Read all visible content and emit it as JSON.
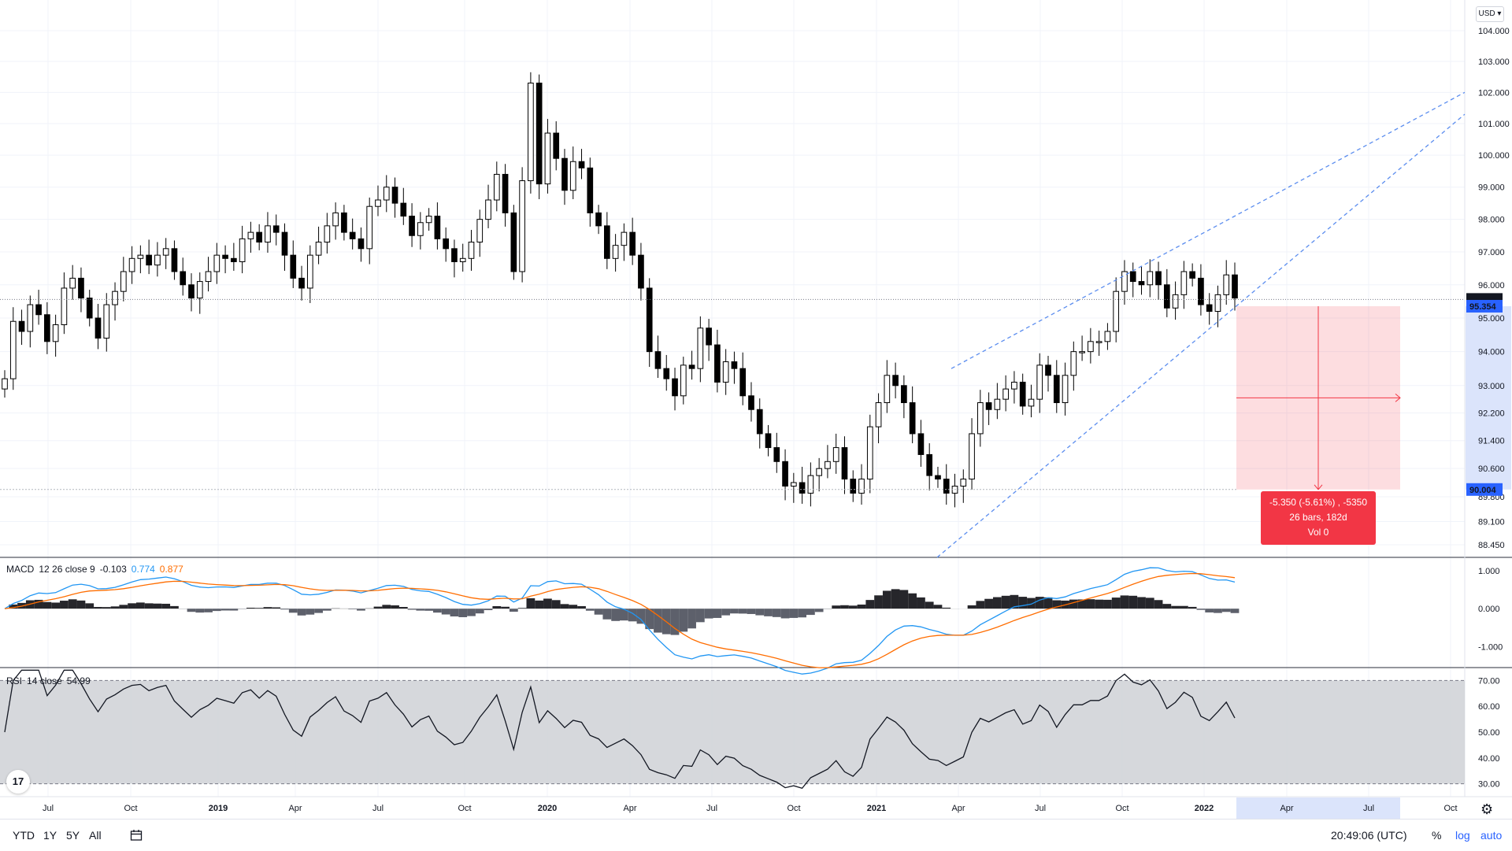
{
  "chart_data": [
    {
      "type": "candlestick",
      "title": "",
      "instrument_currency": "USD",
      "interval": "weekly",
      "x_tick_labels": [
        "Jul",
        "Oct",
        "2019",
        "Apr",
        "Jul",
        "Oct",
        "2020",
        "Apr",
        "Jul",
        "Oct",
        "2021",
        "Apr",
        "Jul",
        "Oct",
        "2022",
        "Apr",
        "Jul",
        "Oct"
      ],
      "y_tick_labels": [
        "104.000",
        "103.000",
        "102.000",
        "101.000",
        "100.000",
        "99.000",
        "98.000",
        "97.000",
        "96.000",
        "95.000",
        "94.000",
        "93.000",
        "92.200",
        "91.400",
        "90.600",
        "89.800",
        "89.100",
        "88.450"
      ],
      "y_log_scale": true,
      "ylim": [
        88.1,
        104.7
      ],
      "last_price_label": "95.558",
      "crosshair_price_label": "95.354",
      "measure_price_label": "90.004",
      "close_path": [
        93.2,
        94.9,
        94.6,
        95.4,
        95.1,
        94.3,
        94.8,
        95.9,
        96.2,
        95.6,
        95.0,
        94.4,
        95.4,
        95.8,
        96.4,
        96.8,
        96.9,
        96.6,
        96.9,
        97.1,
        96.4,
        96.0,
        95.6,
        96.1,
        96.4,
        96.9,
        96.8,
        96.7,
        97.4,
        97.6,
        97.3,
        97.8,
        97.6,
        96.9,
        96.2,
        95.9,
        96.9,
        97.3,
        97.8,
        98.2,
        97.6,
        97.4,
        97.1,
        98.4,
        98.6,
        99.0,
        98.5,
        98.1,
        97.5,
        97.9,
        98.1,
        97.4,
        97.1,
        96.7,
        96.8,
        97.3,
        98.0,
        98.6,
        99.4,
        98.2,
        96.4,
        99.2,
        102.3,
        99.1,
        100.7,
        99.9,
        98.9,
        99.8,
        99.6,
        98.2,
        97.8,
        96.8,
        97.2,
        97.6,
        96.9,
        95.9,
        94.0,
        93.5,
        93.2,
        92.7,
        93.6,
        93.5,
        94.7,
        94.2,
        93.1,
        93.7,
        93.5,
        92.7,
        92.3,
        91.6,
        91.2,
        90.8,
        90.1,
        90.2,
        89.9,
        90.4,
        90.6,
        90.8,
        91.2,
        90.3,
        89.9,
        90.3,
        91.8,
        92.5,
        93.3,
        93.0,
        92.5,
        91.6,
        91.0,
        90.4,
        90.3,
        89.9,
        90.1,
        90.3,
        91.6,
        92.5,
        92.3,
        92.6,
        92.9,
        93.1,
        92.4,
        92.6,
        93.6,
        93.3,
        92.5,
        93.3,
        94.0,
        94.0,
        94.3,
        94.3,
        94.6,
        95.8,
        96.4,
        96.1,
        96.0,
        96.4,
        96.0,
        95.3,
        95.7,
        96.4,
        96.2,
        95.4,
        95.2,
        95.7,
        96.3,
        95.6
      ],
      "annotations": {
        "trend_channel": "dashed rising wedge from Mar 2021 low to 2022",
        "measure": {
          "line1": "-5.350 (-5.61%) , -5350",
          "line2": "26 bars, 182d",
          "line3": "Vol 0"
        }
      }
    },
    {
      "type": "line",
      "label_name": "MACD",
      "label_params": "12 26 close 9",
      "values_text": [
        "-0.103",
        "0.774",
        "0.877"
      ],
      "y_tick_labels": [
        "1.000",
        "0.000",
        "-1.000"
      ],
      "ylim": [
        -1.55,
        1.35
      ],
      "series_colors": {
        "macd": "#2196f3",
        "signal": "#ff6d00",
        "histogram": "#000000"
      }
    },
    {
      "type": "line",
      "label_name": "RSI",
      "label_params": "14 close",
      "value_text": "54.99",
      "y_tick_labels": [
        "70.00",
        "60.00",
        "50.00",
        "40.00",
        "30.00"
      ],
      "ylim": [
        25,
        75
      ],
      "bands": [
        30,
        70
      ],
      "series_color": "#131722"
    }
  ],
  "toolbar": {
    "ranges": [
      "YTD",
      "1Y",
      "5Y",
      "All"
    ],
    "clock": "20:49:06 (UTC)",
    "percent": "%",
    "log": "log",
    "auto": "auto",
    "currency": "USD"
  },
  "colors": {
    "up": "#ffffff",
    "down": "#000000",
    "wick": "#000000",
    "measure": "#f23645",
    "channel": "#5b8def",
    "axis_highlight": "#2962ff"
  }
}
